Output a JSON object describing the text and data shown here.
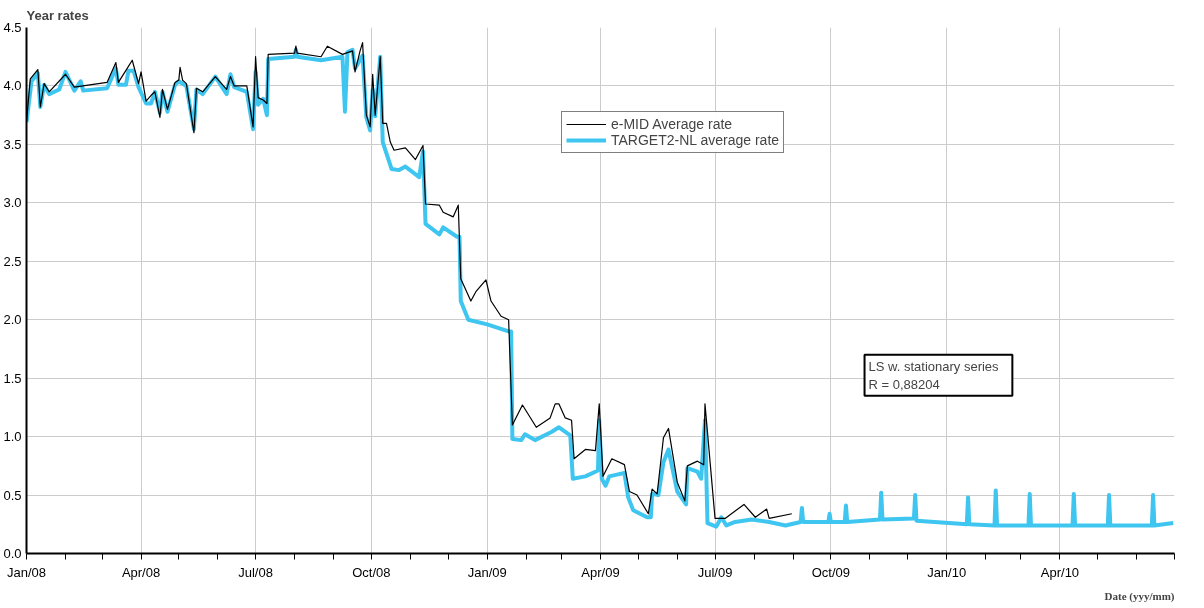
{
  "chart_data": {
    "type": "line",
    "xlabel": "Date (yyy/mm)",
    "ylabel": "Year rates",
    "xlim": [
      "2008-01-01",
      "2010-07-01"
    ],
    "ylim": [
      0,
      4.5
    ],
    "xticks": [
      {
        "value": "2008-01-01",
        "label": "Jan/08"
      },
      {
        "value": "2008-02-01",
        "label": null
      },
      {
        "value": "2008-03-01",
        "label": null
      },
      {
        "value": "2008-04-01",
        "label": "Apr/08"
      },
      {
        "value": "2008-05-01",
        "label": null
      },
      {
        "value": "2008-06-01",
        "label": null
      },
      {
        "value": "2008-07-01",
        "label": "Jul/08"
      },
      {
        "value": "2008-08-01",
        "label": null
      },
      {
        "value": "2008-09-01",
        "label": null
      },
      {
        "value": "2008-10-01",
        "label": "Oct/08"
      },
      {
        "value": "2008-11-01",
        "label": null
      },
      {
        "value": "2008-12-01",
        "label": null
      },
      {
        "value": "2009-01-01",
        "label": "Jan/09"
      },
      {
        "value": "2009-02-01",
        "label": null
      },
      {
        "value": "2009-03-01",
        "label": null
      },
      {
        "value": "2009-04-01",
        "label": "Apr/09"
      },
      {
        "value": "2009-05-01",
        "label": null
      },
      {
        "value": "2009-06-01",
        "label": null
      },
      {
        "value": "2009-07-01",
        "label": "Jul/09"
      },
      {
        "value": "2009-08-01",
        "label": null
      },
      {
        "value": "2009-09-01",
        "label": null
      },
      {
        "value": "2009-10-01",
        "label": "Oct/09"
      },
      {
        "value": "2009-11-01",
        "label": null
      },
      {
        "value": "2009-12-01",
        "label": null
      },
      {
        "value": "2010-01-01",
        "label": "Jan/10"
      },
      {
        "value": "2010-02-01",
        "label": null
      },
      {
        "value": "2010-03-01",
        "label": null
      },
      {
        "value": "2010-04-01",
        "label": "Apr/10"
      },
      {
        "value": "2010-05-01",
        "label": null
      },
      {
        "value": "2010-06-01",
        "label": null
      },
      {
        "value": "2010-07-01",
        "label": null
      }
    ],
    "yticks": [
      {
        "value": 0,
        "label": "0.0"
      },
      {
        "value": 0.5,
        "label": "0.5"
      },
      {
        "value": 1,
        "label": "1.0"
      },
      {
        "value": 1.5,
        "label": "1.5"
      },
      {
        "value": 2,
        "label": "2.0"
      },
      {
        "value": 2.5,
        "label": "2.5"
      },
      {
        "value": 3,
        "label": "3.0"
      },
      {
        "value": 3.5,
        "label": "3.5"
      },
      {
        "value": 4,
        "label": "4.0"
      },
      {
        "value": 4.5,
        "label": "4.5"
      }
    ],
    "grid": true,
    "legend": "top",
    "line_style": "solid",
    "annotations": [
      "LS w. stationary series",
      "R =                    0,88204"
    ],
    "series": [
      {
        "name": "e-MID Average rate",
        "color": "#000000",
        "x": [
          "2008-01-01",
          "2008-01-04",
          "2008-01-10",
          "2008-01-12",
          "2008-01-15",
          "2008-01-19",
          "2008-02-01",
          "2008-02-08",
          "2008-03-05",
          "2008-03-12",
          "2008-03-14",
          "2008-03-21",
          "2008-03-25",
          "2008-03-30",
          "2008-04-01",
          "2008-04-05",
          "2008-04-09",
          "2008-04-12",
          "2008-04-16",
          "2008-04-18",
          "2008-04-22",
          "2008-04-28",
          "2008-05-01",
          "2008-05-02",
          "2008-05-04",
          "2008-05-07",
          "2008-05-13",
          "2008-05-15",
          "2008-05-20",
          "2008-05-30",
          "2008-06-08",
          "2008-06-11",
          "2008-06-14",
          "2008-06-24",
          "2008-06-29",
          "2008-07-01",
          "2008-07-03",
          "2008-07-07",
          "2008-07-10",
          "2008-07-11",
          "2008-08-01",
          "2008-08-02",
          "2008-08-03",
          "2008-08-22",
          "2008-08-27",
          "2008-09-08",
          "2008-09-16",
          "2008-09-18",
          "2008-09-22",
          "2008-09-24",
          "2008-09-27",
          "2008-09-30",
          "2008-10-02",
          "2008-10-04",
          "2008-10-08",
          "2008-10-10",
          "2008-10-13",
          "2008-10-16",
          "2008-10-19",
          "2008-10-28",
          "2008-11-05",
          "2008-11-11",
          "2008-11-13",
          "2008-11-24",
          "2008-11-27",
          "2008-12-05",
          "2008-12-09",
          "2008-12-11",
          "2008-12-19",
          "2008-12-23",
          "2008-12-31",
          "2009-01-04",
          "2009-01-12",
          "2009-01-18",
          "2009-01-21",
          "2009-01-29",
          "2009-02-09",
          "2009-02-20",
          "2009-02-24",
          "2009-02-27",
          "2009-03-04",
          "2009-03-09",
          "2009-03-11",
          "2009-03-20",
          "2009-03-28",
          "2009-03-31",
          "2009-04-03",
          "2009-04-10",
          "2009-04-20",
          "2009-04-24",
          "2009-04-30",
          "2009-05-09",
          "2009-05-12",
          "2009-05-16",
          "2009-05-21",
          "2009-05-25",
          "2009-06-01",
          "2009-06-07",
          "2009-06-09",
          "2009-06-17",
          "2009-06-22",
          "2009-06-23",
          "2009-06-30",
          "2009-07-01",
          "2009-07-09",
          "2009-07-24",
          "2009-08-02",
          "2009-08-11",
          "2009-08-13",
          "2009-08-31"
        ],
        "values": [
          3.69,
          4.06,
          4.14,
          3.82,
          4.02,
          3.95,
          4.1,
          3.99,
          4.03,
          4.2,
          4.03,
          4.15,
          4.22,
          4.02,
          4.12,
          3.87,
          3.92,
          3.95,
          3.73,
          3.97,
          3.8,
          4.03,
          4.05,
          4.16,
          4.05,
          4.02,
          3.6,
          3.98,
          3.95,
          4.08,
          3.97,
          4.08,
          4.0,
          4.0,
          3.65,
          4.25,
          3.9,
          3.88,
          3.85,
          4.27,
          4.28,
          4.34,
          4.28,
          4.25,
          4.34,
          4.27,
          4.3,
          4.12,
          4.3,
          4.37,
          3.75,
          3.65,
          4.1,
          3.75,
          4.25,
          3.68,
          3.68,
          3.52,
          3.45,
          3.47,
          3.37,
          3.49,
          2.99,
          2.98,
          2.92,
          2.88,
          2.98,
          2.35,
          2.16,
          2.24,
          2.34,
          2.16,
          2.03,
          2.0,
          1.1,
          1.27,
          1.08,
          1.16,
          1.28,
          1.28,
          1.16,
          1.14,
          0.81,
          0.89,
          0.88,
          1.28,
          0.66,
          0.81,
          0.76,
          0.53,
          0.5,
          0.34,
          0.55,
          0.51,
          0.99,
          1.07,
          0.61,
          0.45,
          0.75,
          0.79,
          0.76,
          1.28,
          0.42,
          0.3,
          0.3,
          0.42,
          0.31,
          0.38,
          0.3,
          0.34
        ]
      },
      {
        "name": "TARGET2-NL average rate",
        "color": "#3ec5f0",
        "x": [
          "2008-01-01",
          "2008-01-05",
          "2008-01-10",
          "2008-01-12",
          "2008-01-15",
          "2008-01-19",
          "2008-01-27",
          "2008-02-01",
          "2008-02-08",
          "2008-02-13",
          "2008-02-15",
          "2008-03-05",
          "2008-03-12",
          "2008-03-14",
          "2008-03-20",
          "2008-03-22",
          "2008-03-26",
          "2008-03-30",
          "2008-04-05",
          "2008-04-09",
          "2008-04-12",
          "2008-04-16",
          "2008-04-18",
          "2008-04-22",
          "2008-04-28",
          "2008-05-01",
          "2008-05-07",
          "2008-05-13",
          "2008-05-15",
          "2008-05-20",
          "2008-05-30",
          "2008-06-08",
          "2008-06-11",
          "2008-06-14",
          "2008-06-24",
          "2008-06-29",
          "2008-07-01",
          "2008-07-03",
          "2008-07-07",
          "2008-07-10",
          "2008-07-11",
          "2008-08-01",
          "2008-08-02",
          "2008-08-03",
          "2008-08-22",
          "2008-09-08",
          "2008-09-10",
          "2008-09-12",
          "2008-09-16",
          "2008-09-18",
          "2008-09-24",
          "2008-09-27",
          "2008-09-30",
          "2008-10-02",
          "2008-10-04",
          "2008-10-08",
          "2008-10-10",
          "2008-10-17",
          "2008-10-23",
          "2008-10-28",
          "2008-11-08",
          "2008-11-11",
          "2008-11-13",
          "2008-11-24",
          "2008-11-27",
          "2008-12-08",
          "2008-12-10",
          "2008-12-11",
          "2008-12-17",
          "2009-01-01",
          "2009-01-18",
          "2009-01-20",
          "2009-01-21",
          "2009-01-28",
          "2009-01-31",
          "2009-02-08",
          "2009-02-21",
          "2009-02-27",
          "2009-03-08",
          "2009-03-10",
          "2009-03-20",
          "2009-03-30",
          "2009-03-31",
          "2009-04-02",
          "2009-04-05",
          "2009-04-08",
          "2009-04-20",
          "2009-04-23",
          "2009-04-27",
          "2009-05-08",
          "2009-05-11",
          "2009-05-12",
          "2009-05-17",
          "2009-05-21",
          "2009-05-25",
          "2009-06-01",
          "2009-06-08",
          "2009-06-09",
          "2009-06-17",
          "2009-06-20",
          "2009-06-23",
          "2009-06-25",
          "2009-07-02",
          "2009-07-06",
          "2009-07-10",
          "2009-07-17",
          "2009-07-30",
          "2009-08-13",
          "2009-08-26",
          "2009-09-07",
          "2009-09-08",
          "2009-09-09",
          "2009-09-19",
          "2009-09-29",
          "2009-09-30",
          "2009-10-01",
          "2009-10-12",
          "2009-10-13",
          "2009-10-14",
          "2009-11-09",
          "2009-11-10",
          "2009-11-11",
          "2009-12-06",
          "2009-12-07",
          "2009-12-08",
          "2010-01-17",
          "2010-01-18",
          "2010-01-19",
          "2010-02-08",
          "2010-02-09",
          "2010-02-10",
          "2010-03-07",
          "2010-03-08",
          "2010-03-09",
          "2010-04-11",
          "2010-04-12",
          "2010-04-13",
          "2010-05-09",
          "2010-05-10",
          "2010-05-11",
          "2010-06-13",
          "2010-06-14",
          "2010-06-15",
          "2010-06-30"
        ],
        "values": [
          3.69,
          4.04,
          4.11,
          3.82,
          4.01,
          3.93,
          3.97,
          4.12,
          3.96,
          4.04,
          3.96,
          3.98,
          4.15,
          4.01,
          4.01,
          4.13,
          4.13,
          3.99,
          3.85,
          3.85,
          3.95,
          3.77,
          3.95,
          3.78,
          4.01,
          4.04,
          4.0,
          3.63,
          3.97,
          3.93,
          4.08,
          3.93,
          4.1,
          3.99,
          3.95,
          3.63,
          4.12,
          3.84,
          3.89,
          3.75,
          4.23,
          4.25,
          4.31,
          4.25,
          4.22,
          4.25,
          3.78,
          4.29,
          4.31,
          4.15,
          4.26,
          3.73,
          3.62,
          3.97,
          3.74,
          4.25,
          3.52,
          3.29,
          3.28,
          3.31,
          3.22,
          3.44,
          2.82,
          2.73,
          2.79,
          2.71,
          2.71,
          2.16,
          2.0,
          1.96,
          1.9,
          1.9,
          0.98,
          0.97,
          1.02,
          0.97,
          1.04,
          1.08,
          1.01,
          0.64,
          0.66,
          0.71,
          1.14,
          0.64,
          0.58,
          0.66,
          0.69,
          0.48,
          0.37,
          0.31,
          0.31,
          0.51,
          0.5,
          0.78,
          0.89,
          0.53,
          0.42,
          0.73,
          0.7,
          0.64,
          1.14,
          0.26,
          0.23,
          0.31,
          0.24,
          0.27,
          0.29,
          0.27,
          0.24,
          0.27,
          0.39,
          0.27,
          0.27,
          0.27,
          0.34,
          0.27,
          0.27,
          0.41,
          0.27,
          0.29,
          0.52,
          0.29,
          0.3,
          0.5,
          0.28,
          0.25,
          0.48,
          0.25,
          0.24,
          0.54,
          0.24,
          0.24,
          0.51,
          0.24,
          0.24,
          0.51,
          0.24,
          0.24,
          0.5,
          0.24,
          0.24,
          0.5,
          0.24,
          0.26
        ]
      }
    ]
  }
}
